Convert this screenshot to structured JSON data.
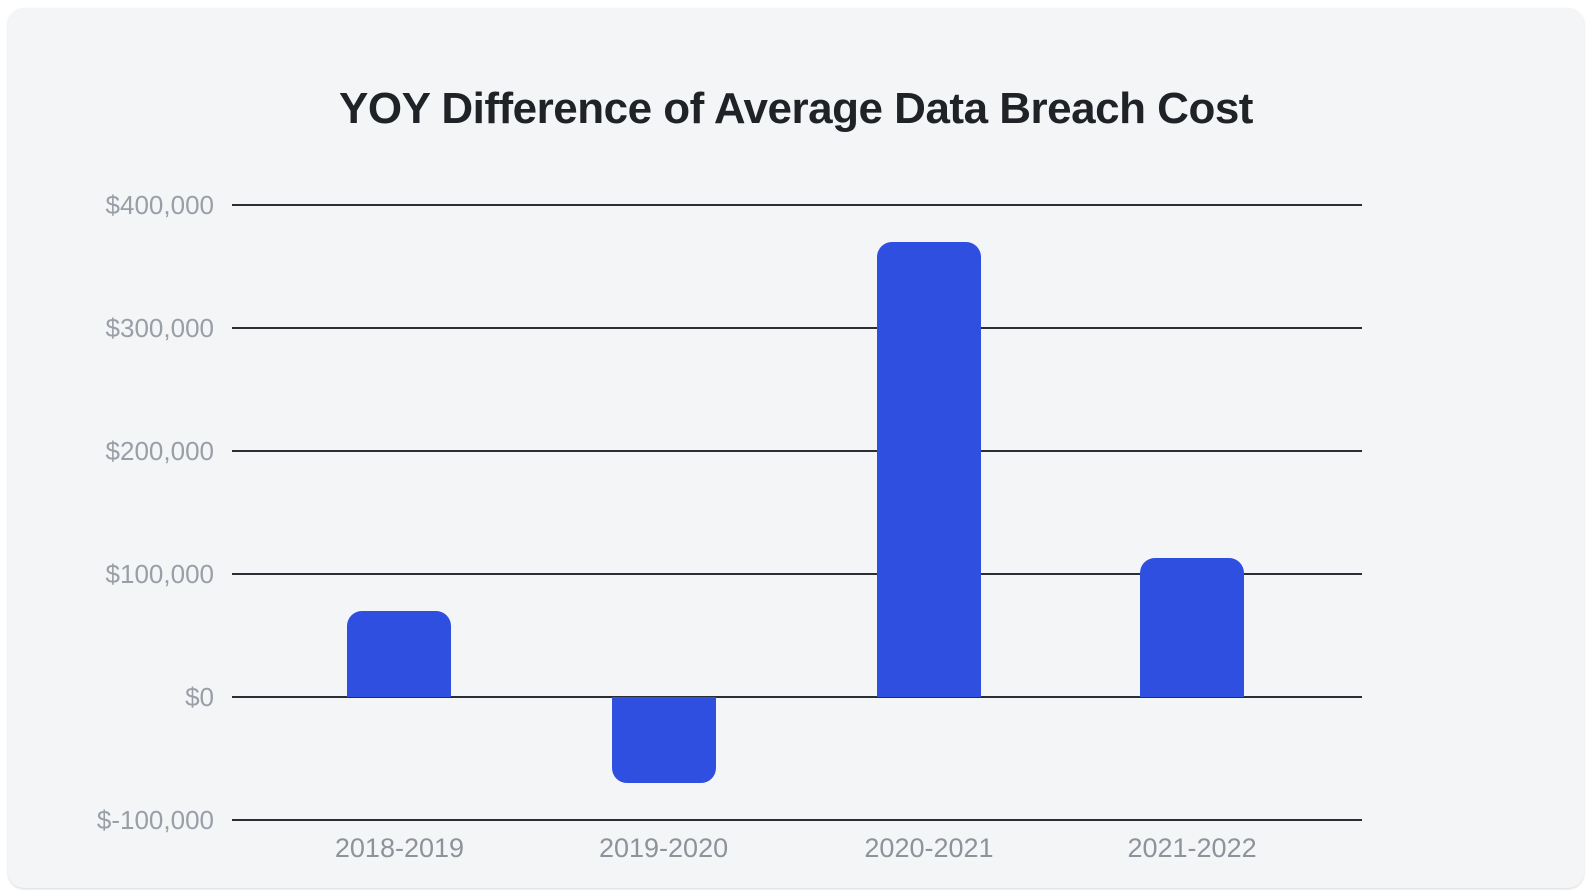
{
  "card": {
    "background": "#f4f5f7"
  },
  "chart_data": {
    "type": "bar",
    "title": "YOY Difference of Average Data Breach Cost",
    "categories": [
      "2018-2019",
      "2019-2020",
      "2020-2021",
      "2021-2022"
    ],
    "values": [
      70000,
      -70000,
      370000,
      113000
    ],
    "ylim": [
      -100000,
      400000
    ],
    "y_ticks": [
      {
        "value": 400000,
        "label": "$400,000"
      },
      {
        "value": 300000,
        "label": "$300,000"
      },
      {
        "value": 200000,
        "label": "$200,000"
      },
      {
        "value": 100000,
        "label": "$100,000"
      },
      {
        "value": 0,
        "label": "$0"
      },
      {
        "value": -100000,
        "label": "$-100,000"
      }
    ],
    "xlabel": "",
    "ylabel": "",
    "legend_position": "none",
    "grid": "horizontal",
    "colors": {
      "bar": "#2e4fe0",
      "gridline": "#2b2e34",
      "y_tick_label": "#999fa7",
      "category_label": "#8d939b",
      "title": "#1f2227",
      "background": "#f4f5f7"
    }
  }
}
